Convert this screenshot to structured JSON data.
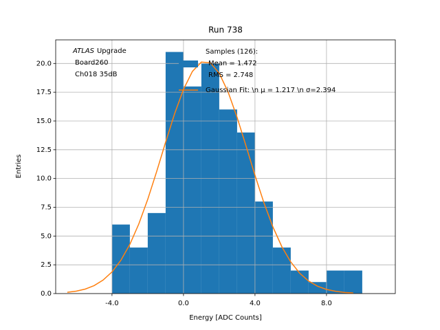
{
  "chart_data": {
    "type": "histogram",
    "title": "Run 738",
    "xlabel": "Energy [ADC Counts]",
    "ylabel": "Entries",
    "xlim": [
      -7.15,
      11.85
    ],
    "ylim": [
      0,
      22.05
    ],
    "xticks": [
      {
        "value": -4,
        "label": "-4.0"
      },
      {
        "value": 0,
        "label": "0.0"
      },
      {
        "value": 4,
        "label": "4.0"
      },
      {
        "value": 8,
        "label": "8.0"
      }
    ],
    "yticks": [
      {
        "value": 0,
        "label": "0.0"
      },
      2.5,
      {
        "value": 5,
        "label": "5.0"
      },
      7.5,
      {
        "value": 10,
        "label": "10.0"
      },
      12.5,
      {
        "value": 15,
        "label": "15.0"
      },
      17.5,
      {
        "value": 20,
        "label": "20.0"
      }
    ],
    "grid": true,
    "annotation": {
      "emphasis": "ATLAS",
      "text": "Upgrade",
      "lines": [
        "Board260",
        "Ch018 35dB"
      ]
    },
    "series": [
      {
        "type": "histogram",
        "name": "Samples (126):",
        "legend_lines": [
          "Mean = 1.472",
          "RMS = 2.748"
        ],
        "color": "#1f77b4",
        "bins": [
          -4,
          -3,
          -2,
          -1,
          0,
          1,
          2,
          3,
          4,
          5,
          6,
          7,
          8,
          9,
          10
        ],
        "values": [
          6,
          4,
          7,
          21,
          18,
          20,
          16,
          14,
          8,
          4,
          2,
          1,
          2,
          2
        ]
      },
      {
        "type": "line",
        "name": "Gaussian Fit: \\n μ = 1.217 \\n σ=2.394",
        "color": "#ff7f0e",
        "x": [
          -6.5,
          -6,
          -5.5,
          -5,
          -4.5,
          -4,
          -3.5,
          -3,
          -2.5,
          -2,
          -1.5,
          -1,
          -0.5,
          0,
          0.5,
          1,
          1.5,
          2,
          2.5,
          3,
          3.5,
          4,
          4.5,
          5,
          5.5,
          6,
          6.5,
          7,
          7.5,
          8,
          8.5,
          9,
          9.5
        ],
        "values": [
          0.11,
          0.21,
          0.39,
          0.69,
          1.17,
          1.88,
          2.9,
          4.28,
          6.05,
          8.19,
          10.61,
          13.16,
          15.62,
          17.75,
          19.31,
          20.12,
          20.06,
          19.15,
          17.5,
          15.31,
          12.82,
          10.28,
          7.89,
          5.8,
          4.08,
          2.75,
          1.77,
          1.09,
          0.64,
          0.36,
          0.2,
          0.1,
          0.05
        ]
      }
    ]
  }
}
